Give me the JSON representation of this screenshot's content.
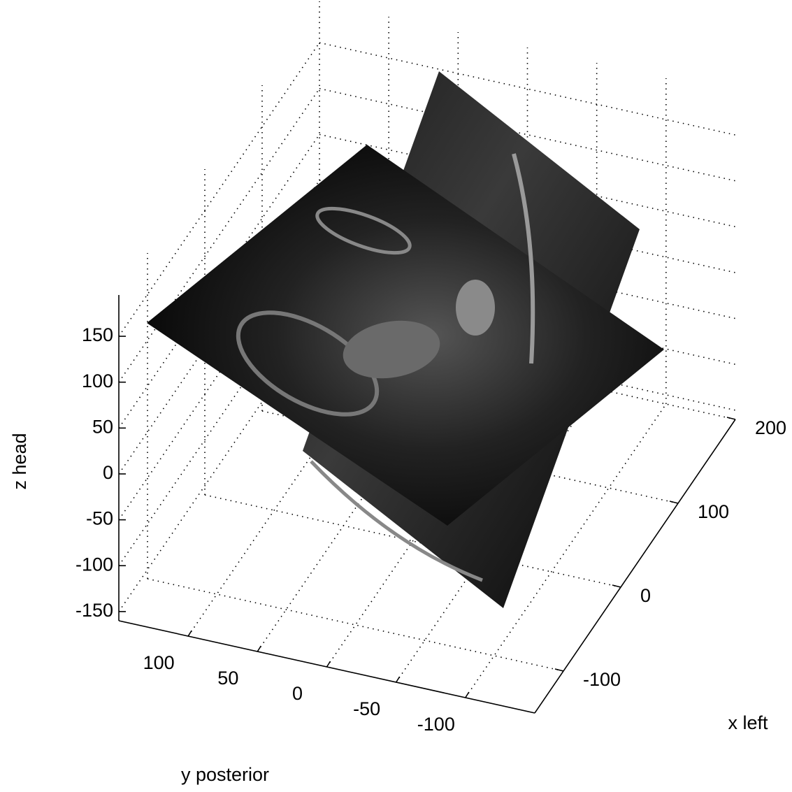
{
  "chart_data": {
    "type": "3d-slices",
    "xlabel": "x left",
    "ylabel": "y posterior",
    "zlabel": "z head",
    "xlim": [
      -150,
      200
    ],
    "ylim": [
      150,
      -150
    ],
    "zlim": [
      -160,
      195
    ],
    "xticks": [
      -100,
      0,
      100,
      200
    ],
    "yticks": [
      100,
      50,
      0,
      -50,
      -100
    ],
    "zticks": [
      -150,
      -100,
      -50,
      0,
      50,
      100,
      150
    ],
    "grid": true
  }
}
